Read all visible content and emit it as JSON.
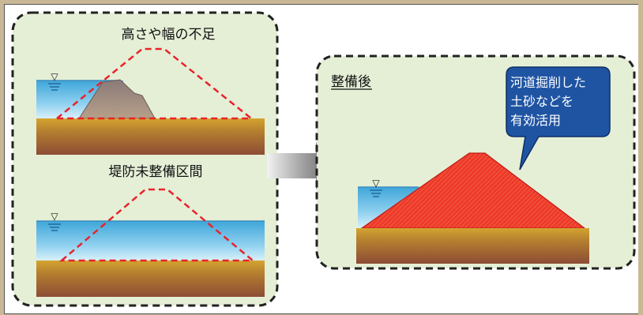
{
  "left_panel": {
    "top_title": "高さや幅の不足",
    "bottom_title": "堤防未整備区間"
  },
  "right_panel": {
    "label": "整備後",
    "callout_lines": [
      "河道掘削した",
      "土砂などを",
      "有効活用"
    ]
  },
  "water_level_mark": "▽",
  "colors": {
    "panel_bg": "#e5efd6",
    "water": "#6cc0e6",
    "ground": "#a26a2e",
    "existing_levee": "#9f8a82",
    "target_outline": "#e8232a",
    "new_levee": "#ea2f24",
    "callout_bg": "#1f54a3"
  }
}
